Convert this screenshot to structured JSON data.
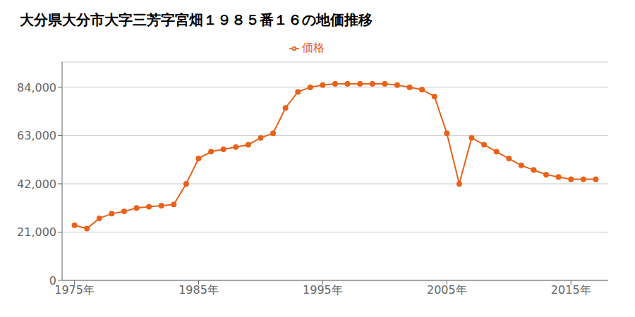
{
  "chart_data": {
    "type": "line",
    "title": "大分県大分市大字三芳字宮畑１９８５番１６の地価推移",
    "x": [
      1975,
      1976,
      1977,
      1978,
      1979,
      1980,
      1981,
      1982,
      1983,
      1984,
      1985,
      1986,
      1987,
      1988,
      1989,
      1990,
      1991,
      1992,
      1993,
      1994,
      1995,
      1996,
      1997,
      1998,
      1999,
      2000,
      2001,
      2002,
      2003,
      2004,
      2005,
      2006,
      2007,
      2008,
      2009,
      2010,
      2011,
      2012,
      2013,
      2014,
      2015,
      2016,
      2017
    ],
    "series": [
      {
        "name": "価格",
        "color": "#E8621A",
        "marker": "circle",
        "values": [
          24000,
          22500,
          27000,
          29000,
          30000,
          31500,
          32000,
          32500,
          33000,
          42000,
          53000,
          56000,
          57000,
          58000,
          59000,
          62000,
          64000,
          75000,
          82000,
          84000,
          85000,
          85500,
          85500,
          85500,
          85500,
          85500,
          85000,
          84000,
          83000,
          80000,
          64000,
          42000,
          62000,
          59000,
          56000,
          53000,
          50000,
          48000,
          46000,
          45000,
          44000,
          44000,
          44000
        ]
      }
    ],
    "xlim": [
      1974,
      2018
    ],
    "xticks": [
      {
        "value": 1975,
        "label": "1975年"
      },
      {
        "value": 1985,
        "label": "1985年"
      },
      {
        "value": 1995,
        "label": "1995年"
      },
      {
        "value": 2005,
        "label": "2005年"
      },
      {
        "value": 2015,
        "label": "2015年"
      }
    ],
    "ylim": [
      0,
      95000
    ],
    "yticks": [
      0,
      {
        "value": 21000,
        "label": "21,000"
      },
      {
        "value": 42000,
        "label": "42,000"
      },
      {
        "value": 63000,
        "label": "63,000"
      },
      {
        "value": 84000,
        "label": "84,000"
      }
    ],
    "grid": "y",
    "legend": "top"
  }
}
